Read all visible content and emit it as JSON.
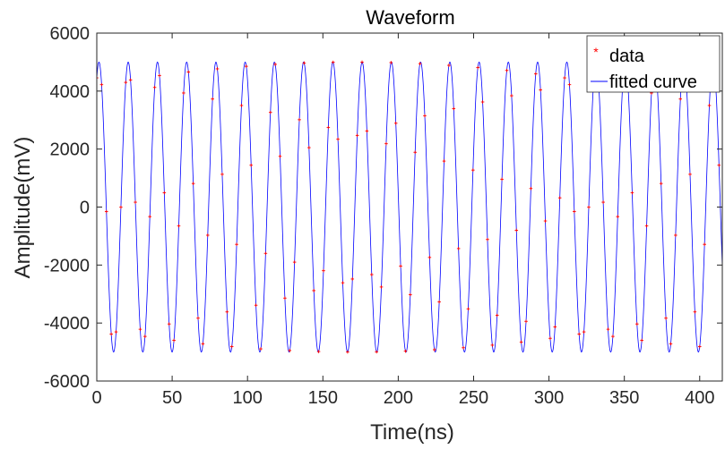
{
  "chart_data": {
    "type": "scatter",
    "title": "Waveform",
    "xlabel": "Time(ns)",
    "ylabel": "Amplitude(mV)",
    "xlim": [
      0,
      415
    ],
    "ylim": [
      -6000,
      6000
    ],
    "xticks": [
      0,
      50,
      100,
      150,
      200,
      250,
      300,
      350,
      400
    ],
    "yticks": [
      -6000,
      -4000,
      -2000,
      0,
      2000,
      4000,
      6000
    ],
    "grid": false,
    "legend_position": "top-right",
    "series": [
      {
        "name": "data",
        "style": "markers",
        "color": "#ff0000",
        "sample_interval_ns": 3.2,
        "count": 130,
        "amplitude_mV": 5000,
        "period_ns": 19.4,
        "phase_rad": 1.1
      },
      {
        "name": "fitted curve",
        "style": "line",
        "color": "#0000ff",
        "amplitude_mV": 5000,
        "period_ns": 19.4,
        "phase_rad": 1.1
      }
    ]
  }
}
